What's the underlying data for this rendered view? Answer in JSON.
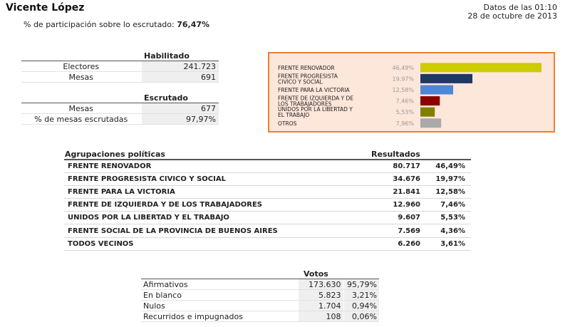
{
  "header": {
    "title": "Vicente López",
    "time_line": "Datos de las 01:10",
    "date_line": "28 de octubre de 2013",
    "participation_label": "% de participación sobre lo escrutado:",
    "participation_value": "76,47%"
  },
  "habilitado": {
    "heading": "Habilitado",
    "rows": [
      {
        "label": "Electores",
        "value": "241.723"
      },
      {
        "label": "Mesas",
        "value": "691"
      }
    ]
  },
  "escrutado": {
    "heading": "Escrutado",
    "rows": [
      {
        "label": "Mesas",
        "value": "677"
      },
      {
        "label": "% de mesas escrutadas",
        "value": "97,97%"
      }
    ]
  },
  "chart_data": {
    "type": "bar",
    "orientation": "horizontal",
    "categories": [
      "FRENTE RENOVADOR",
      "FRENTE PROGRESISTA CIVICO Y SOCIAL",
      "FRENTE PARA LA VICTORIA",
      "FRENTE DE IZQUIERDA Y DE LOS TRABAJADORES",
      "UNIDOS POR LA LIBERTAD Y EL TRABAJO",
      "OTROS"
    ],
    "value_labels": [
      "46,49%",
      "19,97%",
      "12,58%",
      "7,46%",
      "5,53%",
      "7,96%"
    ],
    "values": [
      46.49,
      19.97,
      12.58,
      7.46,
      5.53,
      7.96
    ],
    "colors": [
      "#cccc00",
      "#1f3864",
      "#4f86d6",
      "#8b0000",
      "#808000",
      "#a9a9a9"
    ],
    "grid": false,
    "legend": "none"
  },
  "results": {
    "col_party": "Agrupaciones políticas",
    "col_results": "Resultados",
    "rows": [
      {
        "party": "FRENTE RENOVADOR",
        "votes": "80.717",
        "pct": "46,49%"
      },
      {
        "party": "FRENTE PROGRESISTA CIVICO Y SOCIAL",
        "votes": "34.676",
        "pct": "19,97%"
      },
      {
        "party": "FRENTE PARA LA VICTORIA",
        "votes": "21.841",
        "pct": "12,58%"
      },
      {
        "party": "FRENTE DE IZQUIERDA Y DE LOS TRABAJADORES",
        "votes": "12.960",
        "pct": "7,46%"
      },
      {
        "party": "UNIDOS POR LA LIBERTAD Y EL TRABAJO",
        "votes": "9.607",
        "pct": "5,53%"
      },
      {
        "party": "FRENTE SOCIAL DE LA PROVINCIA DE BUENOS AIRES",
        "votes": "7.569",
        "pct": "4,36%"
      },
      {
        "party": "TODOS VECINOS",
        "votes": "6.260",
        "pct": "3,61%"
      }
    ]
  },
  "votos": {
    "heading": "Votos",
    "rows": [
      {
        "label": "Afirmativos",
        "votes": "173.630",
        "pct": "95,79%"
      },
      {
        "label": "En blanco",
        "votes": "5.823",
        "pct": "3,21%"
      },
      {
        "label": "Nulos",
        "votes": "1.704",
        "pct": "0,94%"
      },
      {
        "label": "Recurridos e impugnados",
        "votes": "108",
        "pct": "0,06%"
      }
    ]
  }
}
